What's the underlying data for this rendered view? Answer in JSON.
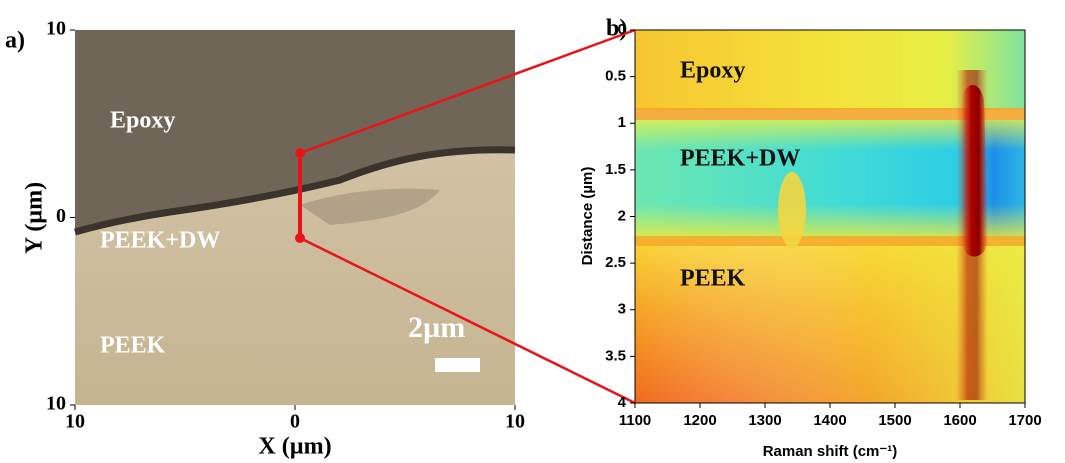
{
  "chart_data": [
    {
      "type": "image",
      "panel_label": "a)",
      "xlabel": "X (µm)",
      "ylabel": "Y (µm)",
      "xlim": [
        -10,
        10
      ],
      "xticks": [
        {
          "value": -10,
          "label": "10"
        },
        0,
        10
      ],
      "ylim": [
        -10,
        10
      ],
      "yticks": [
        {
          "value": -10,
          "label": "10"
        },
        0,
        10
      ],
      "annotations": [
        "Epoxy",
        "PEEK+DW",
        "PEEK"
      ],
      "scale_bar": "2µm"
    },
    {
      "type": "heatmap",
      "panel_label": "b)",
      "xlabel": "Raman shift (cm⁻¹)",
      "ylabel": "Distance (µm)",
      "xlim": [
        1100,
        1700
      ],
      "xticks": [
        1100,
        1200,
        1300,
        1400,
        1500,
        1600,
        1700
      ],
      "ylim": [
        0,
        4
      ],
      "yticks": [
        0,
        0.5,
        1,
        1.5,
        2,
        2.5,
        3,
        3.5,
        4
      ],
      "annotations": [
        "Epoxy",
        "PEEK+DW",
        "PEEK"
      ]
    }
  ]
}
